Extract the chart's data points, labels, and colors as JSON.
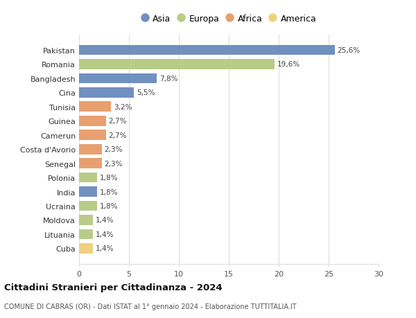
{
  "categories": [
    "Cuba",
    "Lituania",
    "Moldova",
    "Ucraina",
    "India",
    "Polonia",
    "Senegal",
    "Costa d'Avorio",
    "Camerun",
    "Guinea",
    "Tunisia",
    "Cina",
    "Bangladesh",
    "Romania",
    "Pakistan"
  ],
  "values": [
    1.4,
    1.4,
    1.4,
    1.8,
    1.8,
    1.8,
    2.3,
    2.3,
    2.7,
    2.7,
    3.2,
    5.5,
    7.8,
    19.6,
    25.6
  ],
  "labels": [
    "1,4%",
    "1,4%",
    "1,4%",
    "1,8%",
    "1,8%",
    "1,8%",
    "2,3%",
    "2,3%",
    "2,7%",
    "2,7%",
    "3,2%",
    "5,5%",
    "7,8%",
    "19,6%",
    "25,6%"
  ],
  "colors": [
    "#f0d080",
    "#b8cc88",
    "#b8cc88",
    "#b8cc88",
    "#7090c0",
    "#b8cc88",
    "#e8a070",
    "#e8a070",
    "#e8a070",
    "#e8a070",
    "#e8a070",
    "#7090c0",
    "#7090c0",
    "#b8cc88",
    "#7090c0"
  ],
  "legend_labels": [
    "Asia",
    "Europa",
    "Africa",
    "America"
  ],
  "legend_colors": [
    "#7090c0",
    "#b8cc88",
    "#e8a070",
    "#f0d080"
  ],
  "title": "Cittadini Stranieri per Cittadinanza - 2024",
  "subtitle": "COMUNE DI CABRAS (OR) - Dati ISTAT al 1° gennaio 2024 - Elaborazione TUTTITALIA.IT",
  "xlim": [
    0,
    30
  ],
  "xticks": [
    0,
    5,
    10,
    15,
    20,
    25,
    30
  ],
  "background_color": "#ffffff",
  "grid_color": "#dddddd",
  "bar_height": 0.72
}
